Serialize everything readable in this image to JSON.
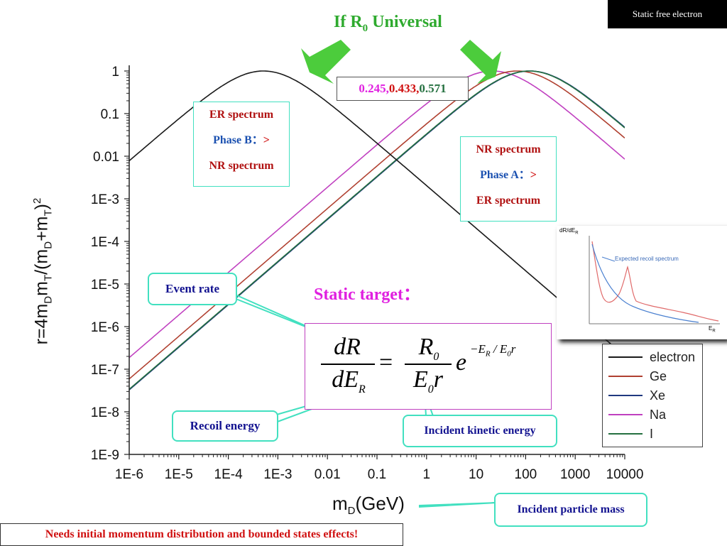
{
  "slide": {
    "title_badge": "Static free electron",
    "headline_prefix": "If R",
    "headline_sub": "0",
    "headline_suffix": " Universal",
    "ratios": {
      "v1": "0.245,",
      "v2": " 0.433,",
      "v3": "0.571"
    },
    "er_box": {
      "line1": "ER spectrum",
      "line2_a": "Phase B：",
      "line2_b": ">",
      "line3": "NR spectrum"
    },
    "nr_box": {
      "line1": "NR spectrum",
      "line2_a": "Phase A：",
      "line2_b": ">",
      "line3": "ER spectrum"
    },
    "static_target": "Static target：",
    "event_rate": "Event rate",
    "recoil_energy": "Recoil energy",
    "incident_kinetic": "Incident kinetic energy",
    "incident_mass": "Incident particle mass",
    "footer": "Needs initial momentum distribution and bounded states effects!",
    "formula": {
      "dR": "dR",
      "dE": "dE",
      "sub_R": "R",
      "R0": "R",
      "zero": "0",
      "E0r": "E",
      "r": "r",
      "exp": "−E",
      "exp2": " / E",
      "exp3": "r"
    },
    "inset": {
      "ylabel": "dR/dE",
      "ysub": "R",
      "xlabel": "E",
      "xsub": "R",
      "label": "Expected recoil spectrum"
    },
    "colors": {
      "green": "#2eaa2e",
      "magenta": "#e020e0",
      "red": "#d01010",
      "navy": "#121290",
      "teal": "#42e0c0"
    }
  },
  "chart_data": {
    "type": "line",
    "xlabel_main": "m",
    "xlabel_sub": "D",
    "xlabel_unit": "(GeV)",
    "ylabel": "r=4m_D m_T/(m_D+m_T)^2",
    "ylabel_parts": {
      "a": "r=4m",
      "b": "D",
      "c": "m",
      "d": "T",
      "e": "/(m",
      "f": "D",
      "g": "+m",
      "h": "T",
      "i": ")",
      "j": "2"
    },
    "x_scale": "log",
    "y_scale": "log",
    "xlim": [
      1e-06,
      10000
    ],
    "ylim": [
      1e-09,
      1
    ],
    "x_ticks": [
      "1E-6",
      "1E-5",
      "1E-4",
      "1E-3",
      "0.01",
      "0.1",
      "1",
      "10",
      "100",
      "1000",
      "10000"
    ],
    "y_ticks": [
      "1",
      "0.1",
      "0.01",
      "1E-3",
      "1E-4",
      "1E-5",
      "1E-6",
      "1E-7",
      "1E-8",
      "1E-9"
    ],
    "series": [
      {
        "name": "electron",
        "color": "#1a1a1a",
        "target_mass_gev": 0.000511
      },
      {
        "name": "Ge",
        "color": "#b04030",
        "target_mass_gev": 67.6
      },
      {
        "name": "Xe",
        "color": "#203880",
        "target_mass_gev": 122.3
      },
      {
        "name": "Na",
        "color": "#c040c0",
        "target_mass_gev": 21.4
      },
      {
        "name": "I",
        "color": "#257040",
        "target_mass_gev": 118.2
      }
    ],
    "legend_position": "bottom-right"
  }
}
